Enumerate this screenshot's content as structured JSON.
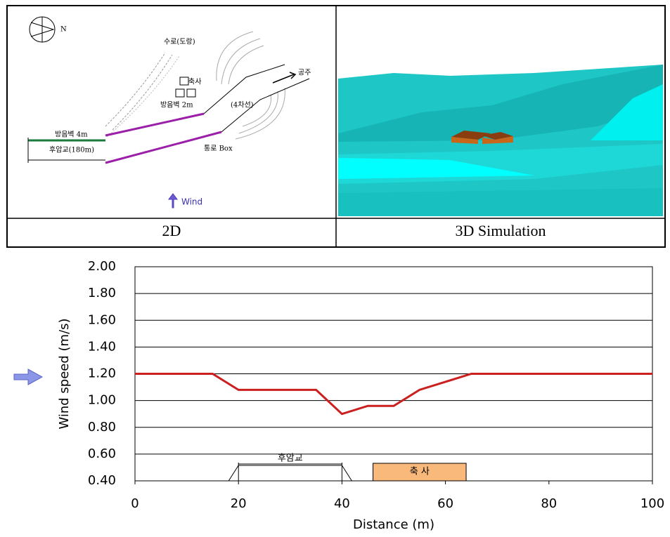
{
  "panels": {
    "captions": [
      "2D",
      "3D Simulation"
    ],
    "diagram_labels": [
      "N",
      "수로(도랑)",
      "축사",
      "방음벽 4m",
      "방음벽 2m",
      "(4차선)",
      "공주",
      "후암교(180m)",
      "통로 Box",
      "Wind"
    ]
  },
  "chart_data": {
    "type": "line",
    "x": [
      0,
      15,
      20,
      35,
      40,
      45,
      50,
      55,
      60,
      65,
      100
    ],
    "series": [
      {
        "color": "#cc1f1f",
        "values": [
          1.2,
          1.2,
          1.08,
          1.08,
          0.9,
          0.96,
          0.96,
          1.08,
          1.14,
          1.2,
          1.2
        ]
      }
    ],
    "xlim": [
      0,
      100
    ],
    "xticks": [
      0,
      20,
      40,
      60,
      80,
      100
    ],
    "ylim": [
      0.4,
      2.0
    ],
    "yticks": [
      {
        "value": 0.4,
        "label": "0.40"
      },
      {
        "value": 0.6,
        "label": "0.60"
      },
      {
        "value": 0.8,
        "label": "0.80"
      },
      {
        "value": 1.0,
        "label": "1.00"
      },
      {
        "value": 1.2,
        "label": "1.20"
      },
      {
        "value": 1.4,
        "label": "1.40"
      },
      {
        "value": 1.6,
        "label": "1.60"
      },
      {
        "value": 1.8,
        "label": "1.80"
      },
      {
        "value": 2.0,
        "label": "2.00"
      }
    ],
    "xlabel": "Distance (m)",
    "ylabel": "Wind speed (m/s)",
    "grid": true,
    "annotations": [
      {
        "text": "후암교",
        "x": [
          20,
          40
        ]
      },
      {
        "text": "축 사",
        "x": [
          46,
          64
        ]
      }
    ]
  }
}
